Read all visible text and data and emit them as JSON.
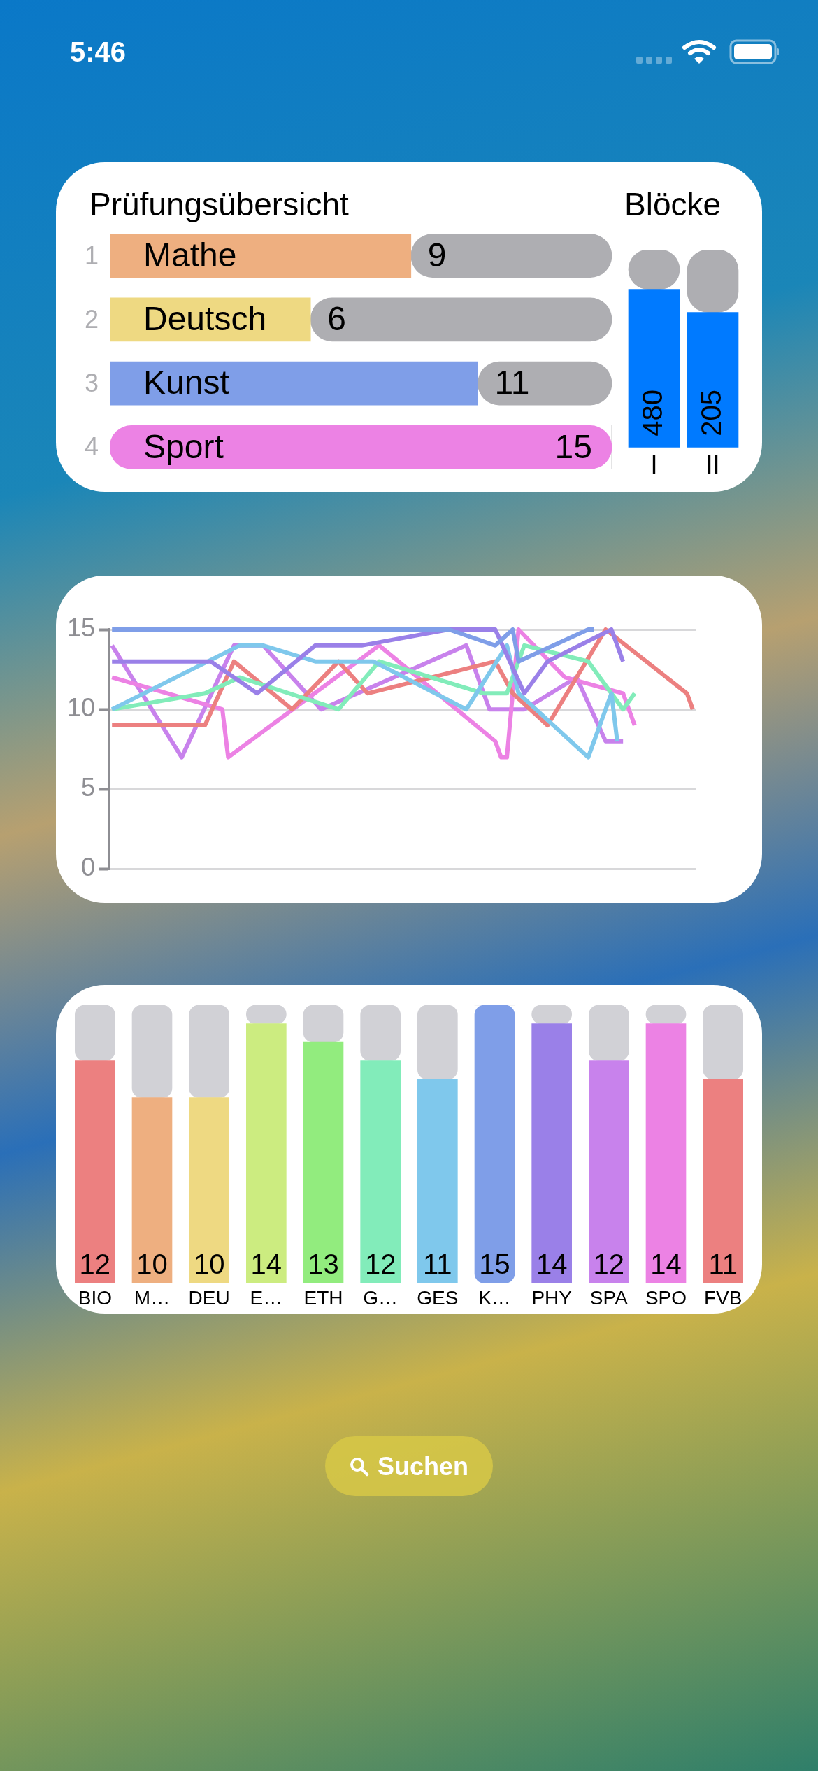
{
  "chart_data": [
    {
      "type": "other",
      "annotations": [
        "5:46"
      ]
    },
    {
      "type": "bar",
      "orientation": "horizontal",
      "stacked": true,
      "title": "Prüfungsübersicht",
      "categories": [
        "Mathe",
        "Deutsch",
        "Kunst",
        "Sport"
      ],
      "xlim": [
        0,
        15
      ],
      "tick_labels": false,
      "annotations": [
        "1",
        "2",
        "3",
        "4"
      ],
      "series": [
        {
          "colors": [
            "#eeaf80",
            "#eed982",
            "#7f9ee8",
            "#ec82e4"
          ],
          "values": [
            9,
            6,
            11,
            15
          ],
          "value_labels": [
            "9",
            "6",
            "11",
            "15"
          ]
        },
        {
          "color": "#aeaeb2",
          "values": [
            6,
            9,
            4,
            0
          ]
        }
      ]
    },
    {
      "type": "bar",
      "stacked": true,
      "title": "Blöcke",
      "categories": [
        "I"
      ],
      "ylim": [
        0,
        600
      ],
      "tick_labels": "x",
      "series": [
        {
          "color": "#007aff",
          "values": [
            480
          ],
          "value_labels": [
            "480"
          ]
        },
        {
          "color": "#aeaeb2",
          "values": [
            120
          ]
        }
      ]
    },
    {
      "type": "bar",
      "stacked": true,
      "categories": [
        "II"
      ],
      "ylim": [
        0,
        300
      ],
      "tick_labels": "x",
      "series": [
        {
          "color": "#007aff",
          "values": [
            205
          ],
          "value_labels": [
            "205"
          ]
        },
        {
          "color": "#aeaeb2",
          "values": [
            95
          ]
        }
      ]
    },
    {
      "type": "line",
      "categories": [
        null,
        null,
        null,
        null,
        null,
        null,
        null,
        null,
        null,
        null,
        null,
        null,
        null,
        null,
        null,
        null,
        null,
        null,
        null,
        null,
        null,
        null,
        null,
        null,
        null,
        null,
        null,
        null,
        null,
        null,
        null,
        null,
        null,
        null,
        null,
        null,
        null,
        null,
        null,
        null,
        null,
        null,
        null,
        null,
        null,
        null,
        null,
        null,
        null,
        null,
        null,
        null,
        null,
        null,
        null,
        null,
        null,
        null,
        null,
        null,
        null,
        null,
        null,
        null,
        null,
        null,
        null,
        null,
        null,
        null,
        null,
        null,
        null,
        null,
        null,
        null,
        null,
        null,
        null,
        null,
        null,
        null,
        null,
        null,
        null,
        null,
        null,
        null,
        null,
        null,
        null,
        null,
        null,
        null,
        null,
        null,
        null,
        null,
        null,
        null,
        null
      ],
      "ylim": [
        0,
        15
      ],
      "yticks": [
        0,
        5,
        10,
        15
      ],
      "grid": "y",
      "tick_labels": "y",
      "marker": "none",
      "series": [
        {
          "color": "#7f9ee8",
          "values": [
            15,
            null,
            null,
            null,
            null,
            null,
            null,
            null,
            null,
            null,
            null,
            null,
            null,
            null,
            null,
            null,
            null,
            null,
            null,
            null,
            null,
            null,
            null,
            null,
            null,
            null,
            null,
            null,
            null,
            null,
            null,
            null,
            null,
            null,
            null,
            null,
            null,
            null,
            null,
            null,
            null,
            null,
            null,
            null,
            null,
            null,
            null,
            null,
            null,
            null,
            null,
            null,
            null,
            null,
            null,
            null,
            null,
            null,
            15,
            null,
            null,
            null,
            null,
            null,
            null,
            null,
            14,
            null,
            null,
            15,
            13,
            null,
            null,
            null,
            null,
            null,
            null,
            null,
            null,
            null,
            null,
            null,
            15,
            15,
            null,
            null,
            null,
            null,
            null,
            null,
            null,
            null,
            null,
            null,
            null,
            null,
            null,
            null,
            null,
            null,
            null
          ]
        },
        {
          "color": "#9a80e8",
          "values": [
            13,
            null,
            null,
            null,
            null,
            null,
            null,
            null,
            null,
            null,
            null,
            null,
            null,
            null,
            null,
            null,
            null,
            13,
            null,
            null,
            null,
            null,
            null,
            null,
            null,
            11,
            null,
            null,
            null,
            null,
            null,
            null,
            null,
            null,
            null,
            14,
            null,
            null,
            null,
            null,
            null,
            null,
            null,
            14,
            null,
            null,
            null,
            null,
            null,
            null,
            null,
            null,
            null,
            null,
            null,
            null,
            null,
            null,
            15,
            null,
            null,
            null,
            null,
            null,
            null,
            null,
            15,
            null,
            null,
            null,
            null,
            11,
            null,
            null,
            null,
            13,
            null,
            null,
            null,
            null,
            null,
            null,
            null,
            null,
            null,
            null,
            15,
            null,
            13,
            null,
            null,
            null,
            null,
            null,
            null,
            null,
            null,
            null,
            null,
            null,
            null
          ]
        },
        {
          "color": "#7fc8ec",
          "values": [
            10,
            null,
            null,
            null,
            null,
            null,
            null,
            null,
            null,
            null,
            null,
            null,
            null,
            null,
            null,
            null,
            null,
            null,
            null,
            null,
            null,
            null,
            14,
            null,
            null,
            null,
            14,
            null,
            null,
            null,
            null,
            null,
            null,
            null,
            null,
            13,
            null,
            null,
            null,
            null,
            null,
            null,
            null,
            null,
            null,
            13,
            null,
            null,
            null,
            null,
            null,
            null,
            null,
            null,
            null,
            null,
            null,
            null,
            null,
            null,
            null,
            10,
            null,
            null,
            null,
            null,
            null,
            null,
            14,
            null,
            11,
            null,
            null,
            null,
            null,
            null,
            null,
            null,
            null,
            null,
            null,
            null,
            7,
            null,
            null,
            null,
            11,
            8,
            null,
            null,
            null,
            null,
            null,
            null,
            null,
            null,
            null,
            null,
            null,
            null,
            null
          ]
        },
        {
          "color": "#82ecba",
          "values": [
            10,
            null,
            null,
            null,
            null,
            null,
            null,
            null,
            null,
            null,
            null,
            null,
            null,
            null,
            null,
            null,
            11,
            null,
            null,
            null,
            null,
            null,
            12,
            null,
            null,
            null,
            null,
            null,
            null,
            null,
            null,
            null,
            null,
            null,
            null,
            null,
            null,
            null,
            null,
            10,
            null,
            null,
            null,
            null,
            null,
            null,
            13,
            null,
            null,
            null,
            null,
            null,
            null,
            null,
            null,
            null,
            null,
            null,
            null,
            null,
            null,
            null,
            null,
            null,
            11,
            null,
            null,
            null,
            11,
            null,
            null,
            14,
            null,
            null,
            null,
            null,
            null,
            null,
            null,
            null,
            null,
            null,
            13,
            null,
            null,
            null,
            null,
            null,
            10,
            null,
            11,
            null,
            null,
            null,
            null,
            null,
            null,
            null,
            null,
            null,
            null
          ]
        },
        {
          "color": "#ec8080",
          "values": [
            9,
            null,
            null,
            null,
            null,
            null,
            null,
            null,
            null,
            null,
            null,
            null,
            null,
            null,
            null,
            null,
            9,
            null,
            null,
            null,
            null,
            13,
            null,
            null,
            null,
            null,
            null,
            null,
            null,
            null,
            null,
            10,
            null,
            null,
            null,
            null,
            null,
            null,
            null,
            13,
            null,
            null,
            null,
            null,
            11,
            null,
            null,
            null,
            null,
            null,
            null,
            null,
            null,
            null,
            null,
            null,
            null,
            null,
            null,
            null,
            null,
            null,
            null,
            null,
            null,
            null,
            13,
            null,
            null,
            11,
            null,
            null,
            null,
            null,
            null,
            9,
            null,
            null,
            null,
            null,
            null,
            null,
            null,
            null,
            null,
            15,
            null,
            null,
            null,
            null,
            null,
            null,
            null,
            null,
            null,
            null,
            null,
            null,
            null,
            11,
            10
          ]
        },
        {
          "color": "#ec82e4",
          "values": [
            12,
            null,
            null,
            null,
            null,
            null,
            null,
            null,
            null,
            null,
            null,
            null,
            null,
            null,
            null,
            null,
            null,
            null,
            null,
            10,
            7,
            null,
            null,
            null,
            null,
            null,
            null,
            null,
            null,
            null,
            null,
            null,
            null,
            null,
            null,
            null,
            null,
            null,
            null,
            null,
            null,
            null,
            null,
            null,
            null,
            null,
            14,
            null,
            null,
            null,
            null,
            null,
            null,
            null,
            null,
            null,
            null,
            null,
            null,
            null,
            null,
            null,
            null,
            null,
            null,
            null,
            8,
            7,
            7,
            null,
            15,
            null,
            null,
            null,
            null,
            null,
            null,
            null,
            12,
            null,
            null,
            null,
            null,
            null,
            null,
            null,
            null,
            null,
            11,
            null,
            9,
            null,
            null,
            null,
            null,
            null,
            null,
            null,
            null,
            null,
            null
          ]
        },
        {
          "color": "#c882ec",
          "values": [
            14,
            null,
            null,
            null,
            null,
            null,
            null,
            null,
            null,
            null,
            null,
            null,
            7,
            null,
            null,
            null,
            null,
            null,
            null,
            null,
            null,
            14,
            null,
            null,
            null,
            null,
            14,
            null,
            null,
            null,
            null,
            null,
            null,
            null,
            null,
            null,
            10,
            null,
            null,
            null,
            null,
            null,
            null,
            null,
            null,
            null,
            null,
            null,
            null,
            null,
            null,
            null,
            null,
            null,
            null,
            null,
            null,
            null,
            null,
            null,
            null,
            14,
            null,
            null,
            null,
            10,
            null,
            null,
            null,
            null,
            null,
            10,
            null,
            null,
            null,
            null,
            null,
            null,
            null,
            null,
            12,
            null,
            null,
            null,
            null,
            8,
            null,
            null,
            8,
            null,
            null,
            null,
            null,
            null,
            null,
            null,
            null,
            null,
            null,
            null,
            null
          ]
        }
      ]
    },
    {
      "type": "bar",
      "stacked": true,
      "categories": [
        "BIO",
        "M…",
        "DEU",
        "E…",
        "ETH",
        "G…",
        "GES",
        "K…",
        "PHY",
        "SPA",
        "SPO",
        "FVB"
      ],
      "ylim": [
        0,
        15
      ],
      "tick_labels": "x",
      "series": [
        {
          "colors": [
            "#ec8080",
            "#eeaf80",
            "#eed982",
            "#ccec80",
            "#92ec7e",
            "#82ecba",
            "#7fc8ec",
            "#7f9ee8",
            "#9a80e8",
            "#c882ec",
            "#ec82e4",
            "#ec8080"
          ],
          "values": [
            12,
            10,
            10,
            14,
            13,
            12,
            11,
            15,
            14,
            12,
            14,
            11
          ],
          "value_labels": [
            "12",
            "10",
            "10",
            "14",
            "13",
            "12",
            "11",
            "15",
            "14",
            "12",
            "14",
            "11"
          ]
        },
        {
          "color": "#d1d1d6",
          "values": [
            3,
            5,
            5,
            1,
            2,
            3,
            4,
            0,
            1,
            3,
            1,
            4
          ]
        }
      ]
    },
    {
      "type": "other",
      "annotations": [
        "Suchen"
      ]
    }
  ]
}
